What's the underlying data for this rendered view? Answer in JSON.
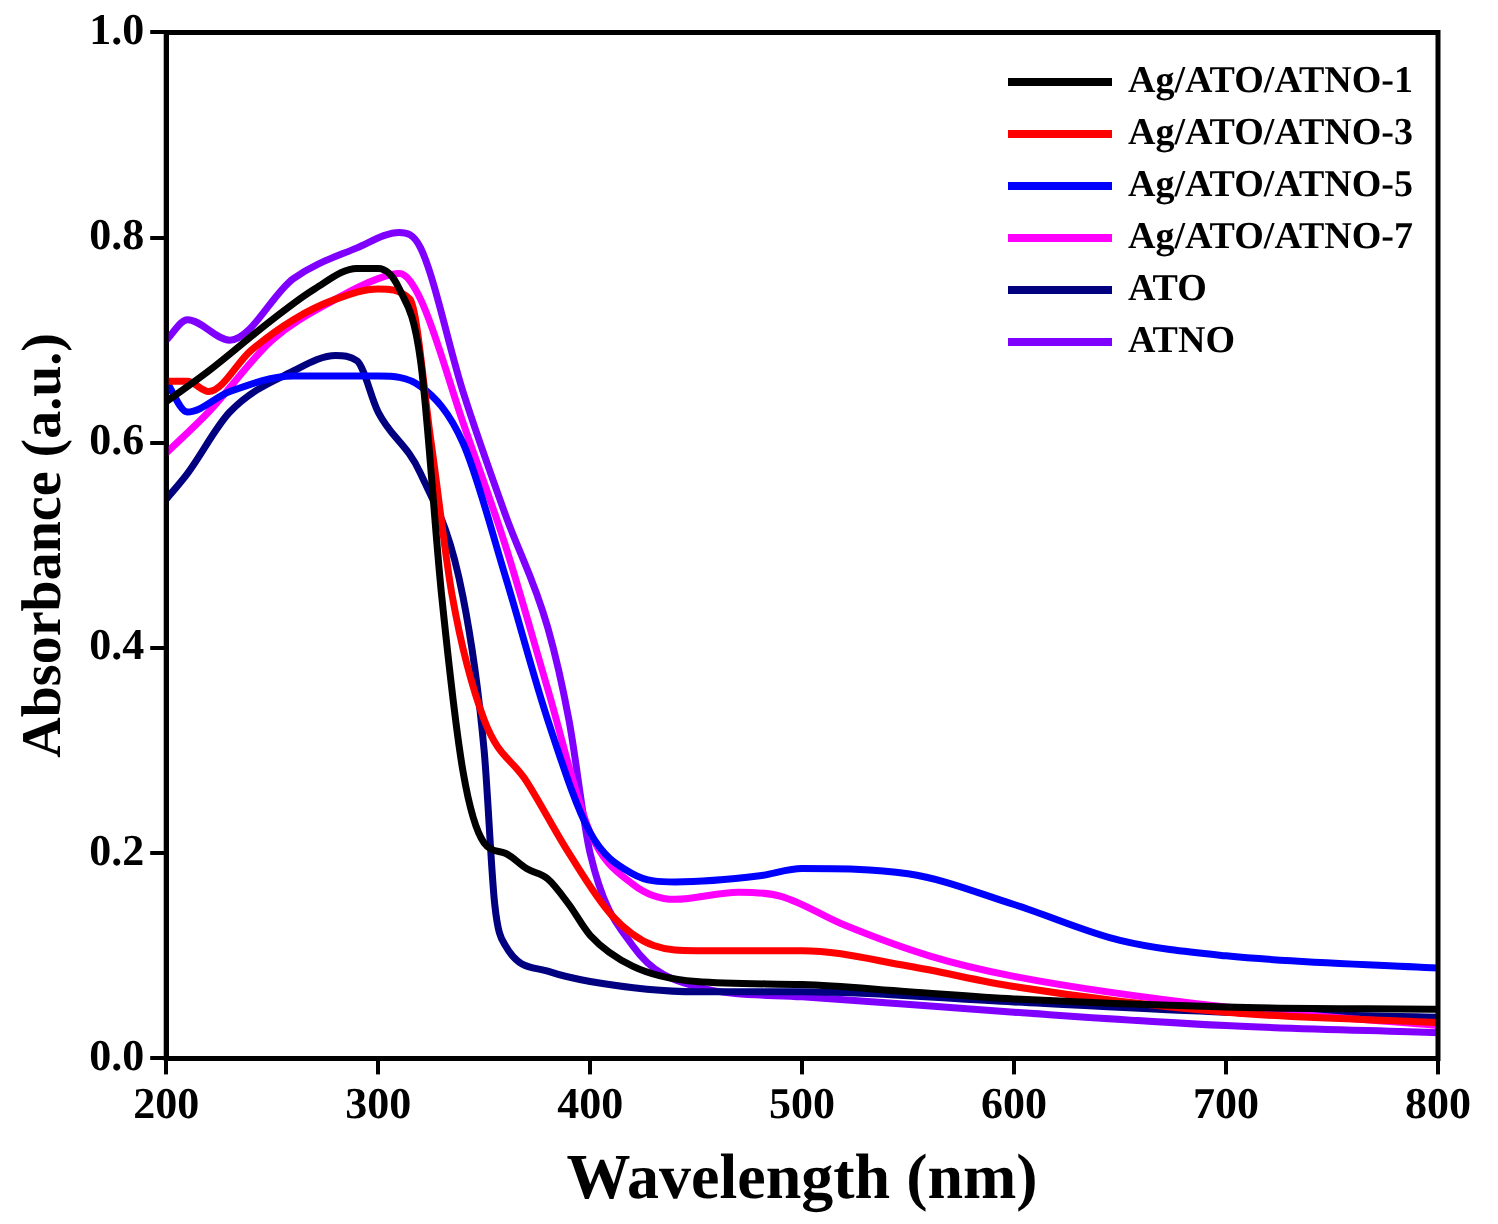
{
  "chart_data": {
    "type": "line",
    "xlabel": "Wavelength (nm)",
    "ylabel": "Absorbance (a.u.)",
    "xlim": [
      200,
      800
    ],
    "xticks": [
      200,
      300,
      400,
      500,
      600,
      700,
      800
    ],
    "ylim": [
      0,
      1
    ],
    "yticks": [
      {
        "value": 0,
        "label": "0.0"
      },
      {
        "value": 0.2,
        "label": "0.2"
      },
      {
        "value": 0.4,
        "label": "0.4"
      },
      {
        "value": 0.6,
        "label": "0.6"
      },
      {
        "value": 0.8,
        "label": "0.8"
      },
      {
        "value": 1,
        "label": "1.0"
      }
    ],
    "grid": false,
    "legend": "top right",
    "marker": "none",
    "line_style": "solid",
    "series": [
      {
        "name": "Ag/ATO/ATNO-1",
        "color": "#000000",
        "x": [
          200,
          220,
          250,
          270,
          290,
          300,
          310,
          320,
          330,
          340,
          350,
          360,
          370,
          380,
          390,
          400,
          420,
          450,
          500,
          550,
          600,
          700,
          800
        ],
        "values": [
          0.64,
          0.67,
          0.72,
          0.75,
          0.77,
          0.77,
          0.75,
          0.68,
          0.45,
          0.28,
          0.21,
          0.2,
          0.185,
          0.175,
          0.15,
          0.12,
          0.09,
          0.075,
          0.072,
          0.065,
          0.058,
          0.05,
          0.048
        ]
      },
      {
        "name": "Ag/ATO/ATNO-3",
        "color": "#ff0000",
        "x": [
          200,
          210,
          220,
          240,
          260,
          280,
          300,
          315,
          325,
          335,
          350,
          370,
          390,
          410,
          430,
          450,
          500,
          550,
          600,
          700,
          800
        ],
        "values": [
          0.66,
          0.66,
          0.65,
          0.69,
          0.72,
          0.74,
          0.75,
          0.74,
          0.6,
          0.45,
          0.33,
          0.27,
          0.2,
          0.14,
          0.11,
          0.105,
          0.105,
          0.09,
          0.07,
          0.045,
          0.035
        ]
      },
      {
        "name": "Ag/ATO/ATNO-5",
        "color": "#0000ff",
        "x": [
          200,
          210,
          230,
          260,
          300,
          320,
          340,
          360,
          380,
          400,
          420,
          440,
          480,
          500,
          550,
          600,
          650,
          700,
          800
        ],
        "values": [
          0.66,
          0.63,
          0.65,
          0.665,
          0.665,
          0.655,
          0.6,
          0.47,
          0.33,
          0.22,
          0.18,
          0.172,
          0.178,
          0.185,
          0.18,
          0.15,
          0.115,
          0.1,
          0.088
        ]
      },
      {
        "name": "Ag/ATO/ATNO-7",
        "color": "#ff00ff",
        "x": [
          200,
          220,
          250,
          280,
          300,
          310,
          320,
          340,
          360,
          380,
          400,
          420,
          440,
          470,
          490,
          520,
          560,
          600,
          700,
          800
        ],
        "values": [
          0.59,
          0.63,
          0.7,
          0.74,
          0.76,
          0.765,
          0.74,
          0.62,
          0.5,
          0.36,
          0.22,
          0.17,
          0.155,
          0.162,
          0.158,
          0.13,
          0.1,
          0.08,
          0.05,
          0.032
        ]
      },
      {
        "name": "ATO",
        "color": "#000080",
        "x": [
          200,
          210,
          230,
          260,
          280,
          290,
          300,
          320,
          340,
          350,
          355,
          360,
          380,
          400,
          450,
          500,
          600,
          700,
          800
        ],
        "values": [
          0.545,
          0.57,
          0.63,
          0.67,
          0.685,
          0.68,
          0.63,
          0.57,
          0.45,
          0.3,
          0.15,
          0.11,
          0.085,
          0.075,
          0.065,
          0.065,
          0.055,
          0.045,
          0.04
        ]
      },
      {
        "name": "ATNO",
        "color": "#8000ff",
        "x": [
          200,
          210,
          230,
          260,
          290,
          310,
          320,
          340,
          360,
          380,
          390,
          400,
          420,
          450,
          500,
          600,
          700,
          800
        ],
        "values": [
          0.7,
          0.72,
          0.7,
          0.76,
          0.79,
          0.805,
          0.79,
          0.65,
          0.53,
          0.42,
          0.33,
          0.2,
          0.11,
          0.07,
          0.06,
          0.045,
          0.032,
          0.025
        ]
      }
    ]
  }
}
